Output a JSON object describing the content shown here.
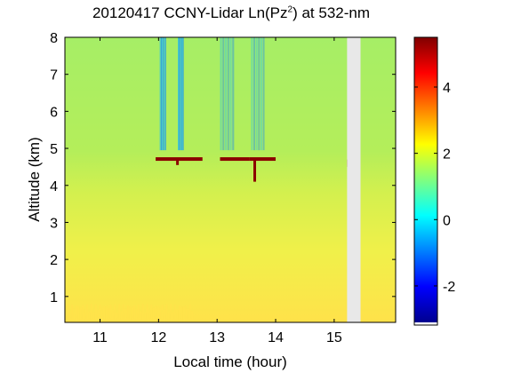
{
  "chart_data": {
    "type": "heatmap",
    "title": {
      "prefix": "20120417 CCNY-Lidar Ln(Pz",
      "superscript": "2",
      "suffix": ") at 532-nm"
    },
    "xlabel": "Local time (hour)",
    "ylabel": "Altitude (km)",
    "xlim": [
      10.4,
      16.05
    ],
    "ylim": [
      0.3,
      8.0
    ],
    "xticks": [
      11,
      12,
      13,
      14,
      15
    ],
    "yticks": [
      1,
      2,
      3,
      4,
      5,
      6,
      7,
      8
    ],
    "colorbar": {
      "colormap": "jet",
      "clim": [
        -3.1,
        5.5
      ],
      "ticks": [
        -2,
        0,
        2,
        4
      ]
    },
    "data_gaps": [
      [
        15.22,
        15.45
      ]
    ],
    "features": {
      "cloud_layer_altitude_km": 4.7,
      "cloud_segments": [
        [
          11.95,
          12.75
        ],
        [
          13.05,
          13.55
        ],
        [
          13.55,
          14.0
        ]
      ],
      "clear_column_bands": [
        [
          12.02,
          12.13
        ],
        [
          12.33,
          12.43
        ],
        [
          13.05,
          13.3
        ],
        [
          13.58,
          13.82
        ]
      ]
    },
    "colors": {
      "cloud": "#8b0000",
      "gap": "#e8e8e8",
      "background_field": "#a6f060",
      "boundary_layer": "#ffe24a"
    }
  }
}
